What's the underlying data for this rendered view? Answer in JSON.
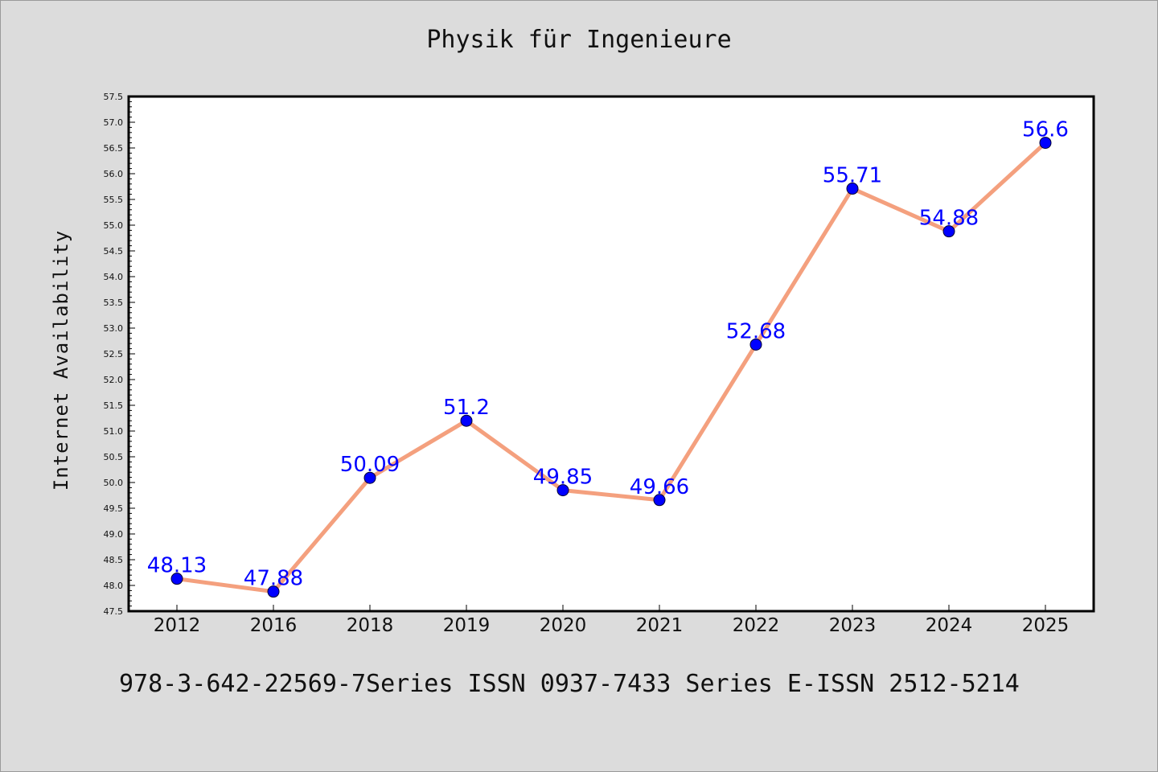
{
  "chart_data": {
    "type": "line",
    "title": "Physik für Ingenieure",
    "xlabel": "",
    "ylabel": "Internet Availability",
    "categories": [
      "2012",
      "2016",
      "2018",
      "2019",
      "2020",
      "2021",
      "2022",
      "2023",
      "2024",
      "2025"
    ],
    "series": [
      {
        "values": [
          48.13,
          47.88,
          50.09,
          51.2,
          49.85,
          49.66,
          52.68,
          55.71,
          54.88,
          56.6
        ],
        "data_labels": [
          "48.13",
          "47.88",
          "50.09",
          "51.2",
          "49.85",
          "49.66",
          "52.68",
          "55.71",
          "54.88",
          "56.6"
        ]
      }
    ],
    "ylim": [
      47.5,
      57.5
    ],
    "y_ticks": [
      "47.5",
      "48.0",
      "48.5",
      "49.0",
      "49.5",
      "50.0",
      "50.5",
      "51.0",
      "51.5",
      "52.0",
      "52.5",
      "53.0",
      "53.5",
      "54.0",
      "54.5",
      "55.0",
      "55.5",
      "56.0",
      "56.5",
      "57.0",
      "57.5"
    ],
    "grid": false,
    "colors": {
      "line": "#f4a07e",
      "marker": "#0000ff",
      "label": "#0000ff",
      "background": "#dcdcdc",
      "plot_background": "#ffffff"
    }
  },
  "footer": "978-3-642-22569-7Series ISSN 0937-7433 Series E-ISSN 2512-5214"
}
